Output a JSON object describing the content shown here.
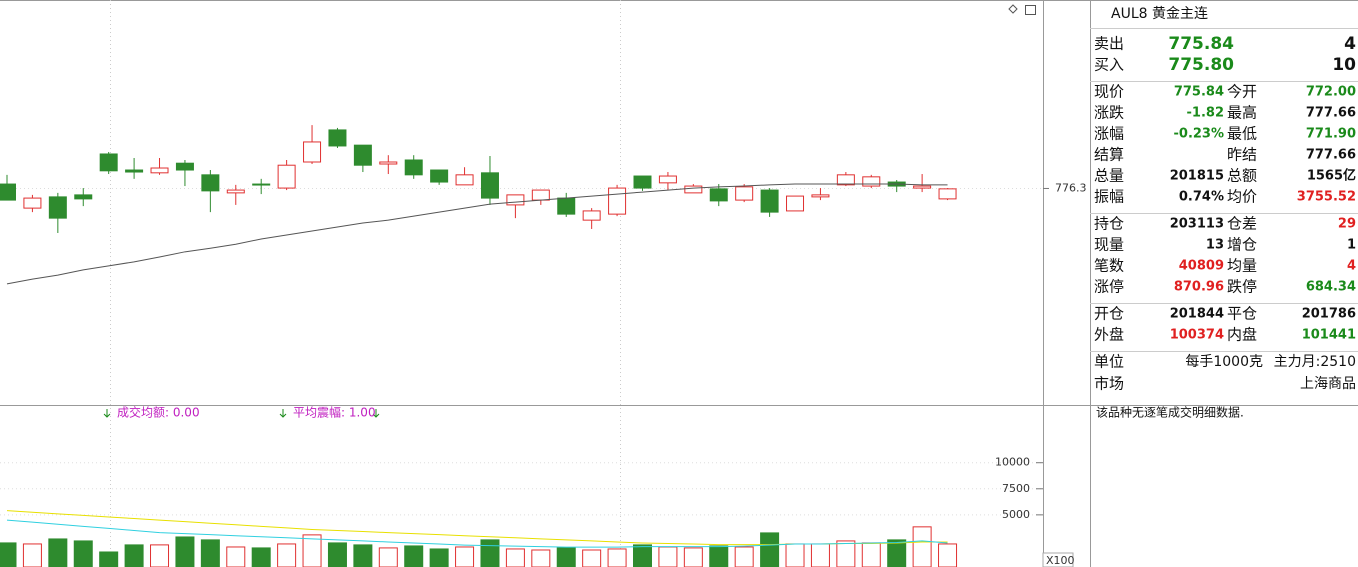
{
  "chart_data": [
    {
      "type": "candlestick",
      "up_color": "#e03030",
      "down_color": "#2e8b2e",
      "ylim": [
        770.9,
        781.0
      ],
      "yticks": [
        776.3
      ],
      "open": [
        776.41,
        775.81,
        776.09,
        776.14,
        777.16,
        776.76,
        776.69,
        776.93,
        776.64,
        776.19,
        776.41,
        776.31,
        776.96,
        777.76,
        777.38,
        776.91,
        777.01,
        776.76,
        776.39,
        776.69,
        775.89,
        776.01,
        776.06,
        775.51,
        775.66,
        776.61,
        776.44,
        776.19,
        776.29,
        776.01,
        776.26,
        775.74,
        776.09,
        776.39,
        776.36,
        776.46,
        776.31,
        776.04
      ],
      "high": [
        776.64,
        776.14,
        776.19,
        776.31,
        777.21,
        777.06,
        777.06,
        777.01,
        776.76,
        776.39,
        776.54,
        777.01,
        777.88,
        777.81,
        777.38,
        777.13,
        777.13,
        776.76,
        776.83,
        777.11,
        776.14,
        776.26,
        776.19,
        775.81,
        776.39,
        776.61,
        776.71,
        776.41,
        776.41,
        776.41,
        776.31,
        776.11,
        776.31,
        776.71,
        776.64,
        776.51,
        776.66,
        776.31
      ],
      "low": [
        776.01,
        775.71,
        775.19,
        775.86,
        776.66,
        776.54,
        776.64,
        776.36,
        775.71,
        775.89,
        776.16,
        776.26,
        776.91,
        777.31,
        776.71,
        776.66,
        776.54,
        776.39,
        776.39,
        775.89,
        775.56,
        775.89,
        775.59,
        775.29,
        775.61,
        776.24,
        776.26,
        776.19,
        775.86,
        775.96,
        775.59,
        775.74,
        776.01,
        776.36,
        776.31,
        776.21,
        776.21,
        776.01
      ],
      "close": [
        776.01,
        776.06,
        775.56,
        776.04,
        776.74,
        776.71,
        776.81,
        776.76,
        776.24,
        776.26,
        776.39,
        776.88,
        777.46,
        777.36,
        776.88,
        776.96,
        776.64,
        776.46,
        776.64,
        776.06,
        776.14,
        776.26,
        775.66,
        775.74,
        776.31,
        776.31,
        776.61,
        776.36,
        775.99,
        776.34,
        775.71,
        776.11,
        776.14,
        776.64,
        776.59,
        776.36,
        776.36,
        776.29
      ],
      "ma": {
        "color": "#555555",
        "values": [
          773.92,
          774.04,
          774.14,
          774.27,
          774.37,
          774.47,
          774.59,
          774.72,
          774.81,
          774.91,
          775.04,
          775.14,
          775.24,
          775.34,
          775.44,
          775.51,
          775.61,
          775.71,
          775.81,
          775.91,
          775.96,
          776.01,
          776.06,
          776.11,
          776.16,
          776.21,
          776.26,
          776.31,
          776.34,
          776.36,
          776.39,
          776.41,
          776.41,
          776.41,
          776.41,
          776.41,
          776.39,
          776.39
        ]
      }
    },
    {
      "type": "bar",
      "ylim": [
        0,
        14000
      ],
      "yticks": [
        5000,
        7500,
        10000
      ],
      "values": [
        2310,
        2210,
        2690,
        2500,
        1440,
        2120,
        2120,
        2880,
        2600,
        1920,
        1830,
        2210,
        3080,
        2310,
        2120,
        1830,
        2020,
        1730,
        1920,
        2600,
        1730,
        1630,
        1830,
        1630,
        1730,
        2120,
        1920,
        1830,
        2020,
        1920,
        3270,
        2210,
        2210,
        2500,
        2310,
        2600,
        3850,
        2210
      ],
      "lines": [
        {
          "color": "#e8e000",
          "values": [
            5400,
            5250,
            5100,
            4950,
            4800,
            4650,
            4500,
            4350,
            4200,
            4050,
            3900,
            3750,
            3600,
            3500,
            3400,
            3300,
            3200,
            3100,
            3000,
            2900,
            2800,
            2700,
            2600,
            2500,
            2400,
            2300,
            2250,
            2200,
            2150,
            2150,
            2150,
            2200,
            2200,
            2250,
            2250,
            2300,
            2400,
            2400
          ]
        },
        {
          "color": "#30d0e0",
          "values": [
            4500,
            4300,
            4100,
            3900,
            3700,
            3500,
            3300,
            3200,
            3100,
            3000,
            2900,
            2800,
            2700,
            2600,
            2500,
            2400,
            2300,
            2200,
            2100,
            2050,
            2000,
            1950,
            1900,
            1900,
            1900,
            1950,
            1950,
            1950,
            1950,
            2000,
            2100,
            2200,
            2200,
            2250,
            2300,
            2350,
            2500,
            2300
          ]
        }
      ],
      "annotations": [
        "成交均额: 0.00",
        "平均震幅: 1.00"
      ],
      "unit_label": "X100"
    }
  ],
  "quote": {
    "title": "AUL8 黄金主连",
    "bid_ask": [
      {
        "label": "卖出",
        "price": "775.84",
        "qty": "4"
      },
      {
        "label": "买入",
        "price": "775.80",
        "qty": "10"
      }
    ],
    "sections": [
      [
        {
          "l1": "现价",
          "v1": "775.84",
          "c1": "#1a8a1a",
          "l2": "今开",
          "v2": "772.00",
          "c2": "#1a8a1a"
        },
        {
          "l1": "涨跌",
          "v1": "-1.82",
          "c1": "#1a8a1a",
          "l2": "最高",
          "v2": "777.66",
          "c2": "#111111"
        },
        {
          "l1": "涨幅",
          "v1": "-0.23%",
          "c1": "#1a8a1a",
          "l2": "最低",
          "v2": "771.90",
          "c2": "#1a8a1a"
        },
        {
          "l1": "结算",
          "l2": "昨结",
          "v2": "777.66",
          "c2": "#111111"
        },
        {
          "l1": "总量",
          "v1": "201815",
          "c1": "#111111",
          "l2": "总额",
          "v2": "1565亿",
          "c2": "#111111"
        },
        {
          "l1": "振幅",
          "v1": "0.74%",
          "c1": "#111111",
          "l2": "均价",
          "v2": "3755.52",
          "c2": "#e02020"
        }
      ],
      [
        {
          "l1": "持仓",
          "v1": "203113",
          "c1": "#111111",
          "l2": "仓差",
          "v2": "29",
          "c2": "#e02020"
        },
        {
          "l1": "现量",
          "v1": "13",
          "c1": "#111111",
          "l2": "增仓",
          "v2": "1",
          "c2": "#111111"
        },
        {
          "l1": "笔数",
          "v1": "40809",
          "c1": "#e02020",
          "l2": "均量",
          "v2": "4",
          "c2": "#e02020"
        },
        {
          "l1": "涨停",
          "v1": "870.96",
          "c1": "#e02020",
          "l2": "跌停",
          "v2": "684.34",
          "c2": "#1a8a1a"
        }
      ],
      [
        {
          "l1": "开仓",
          "v1": "201844",
          "c1": "#111111",
          "l2": "平仓",
          "v2": "201786",
          "c2": "#111111"
        },
        {
          "l1": "外盘",
          "v1": "100374",
          "c1": "#e02020",
          "l2": "内盘",
          "v2": "101441",
          "c2": "#1a8a1a"
        }
      ]
    ],
    "info": [
      {
        "label": "单位",
        "value": "每手1000克",
        "extra": "主力月:2510"
      },
      {
        "label": "市场",
        "value": "上海商品"
      }
    ],
    "note": "该品种无逐笔成交明细数据."
  }
}
